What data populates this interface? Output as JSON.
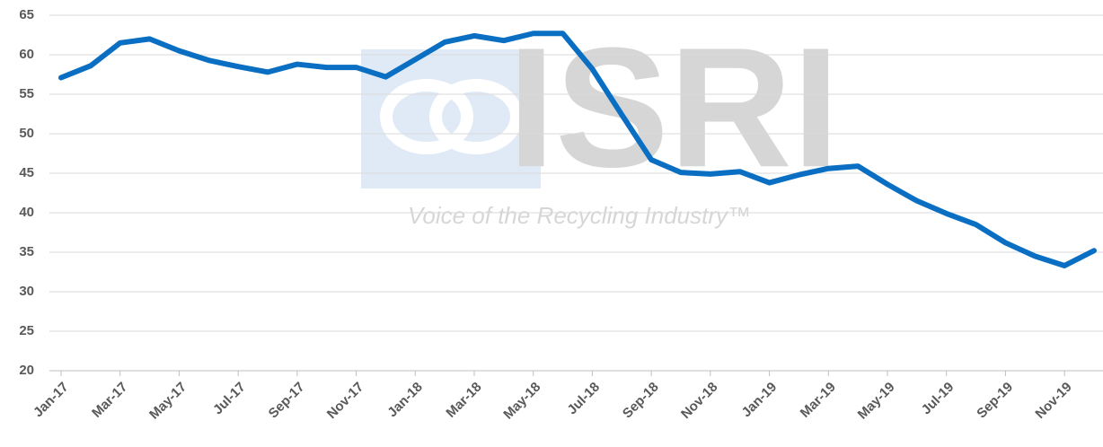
{
  "chart_data": {
    "type": "line",
    "watermark": "ISRI",
    "watermark_tagline": "Voice of the Recycling Industry™",
    "categories": [
      "Jan-17",
      null,
      "Mar-17",
      null,
      "May-17",
      null,
      "Jul-17",
      null,
      "Sep-17",
      null,
      "Nov-17",
      null,
      "Jan-18",
      null,
      "Mar-18",
      null,
      "May-18",
      null,
      "Jul-18",
      null,
      "Sep-18",
      null,
      "Nov-18",
      null,
      "Jan-19",
      null,
      "Mar-19",
      null,
      "May-19",
      null,
      "Jul-19",
      null,
      "Sep-19",
      null,
      "Nov-19",
      null
    ],
    "series": [
      {
        "color": "#0a6fc2",
        "values": [
          57.1,
          58.6,
          61.5,
          62.0,
          60.5,
          59.3,
          58.5,
          57.8,
          58.8,
          58.4,
          58.4,
          57.2,
          59.4,
          61.6,
          62.4,
          61.8,
          62.7,
          62.7,
          58.2,
          52.4,
          46.7,
          45.1,
          44.9,
          45.2,
          43.8,
          44.8,
          45.6,
          45.9,
          43.6,
          41.5,
          39.9,
          38.5,
          36.2,
          34.5,
          33.3,
          35.2
        ]
      }
    ],
    "ylim": [
      20,
      65
    ],
    "yticks": [
      20,
      25,
      30,
      35,
      40,
      45,
      50,
      55,
      60,
      65
    ],
    "grid": true
  }
}
